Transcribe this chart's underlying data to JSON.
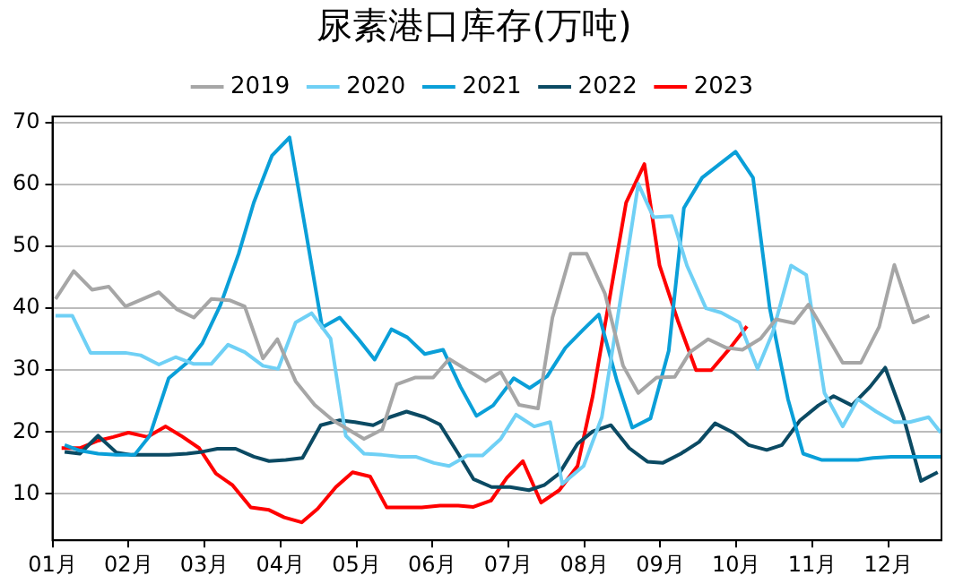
{
  "chart_data": {
    "type": "line",
    "title": "尿素港口库存(万吨)",
    "legend": "top",
    "grid": "y",
    "line_style": "solid",
    "marker": "none",
    "xlim": [
      1,
      12.7
    ],
    "xticks": [
      {
        "value": 1,
        "label": "01月"
      },
      {
        "value": 2,
        "label": "02月"
      },
      {
        "value": 3,
        "label": "03月"
      },
      {
        "value": 4,
        "label": "04月"
      },
      {
        "value": 5,
        "label": "05月"
      },
      {
        "value": 6,
        "label": "06月"
      },
      {
        "value": 7,
        "label": "07月"
      },
      {
        "value": 8,
        "label": "08月"
      },
      {
        "value": 9,
        "label": "09月"
      },
      {
        "value": 10,
        "label": "10月"
      },
      {
        "value": 11,
        "label": "11月"
      },
      {
        "value": 12,
        "label": "12月"
      }
    ],
    "ylim": [
      2.5,
      71
    ],
    "yticks": [
      10,
      20,
      30,
      40,
      50,
      60,
      70
    ],
    "series": [
      {
        "name": "2019",
        "color": "#a6a6a6",
        "x": [
          1.04,
          1.28,
          1.52,
          1.74,
          1.96,
          2.4,
          2.64,
          2.86,
          3.09,
          3.33,
          3.53,
          3.77,
          3.96,
          4.2,
          4.45,
          4.69,
          5.1,
          5.34,
          5.53,
          5.77,
          6.01,
          6.22,
          6.46,
          6.7,
          6.9,
          7.14,
          7.39,
          7.58,
          7.82,
          8.03,
          8.27,
          8.51,
          8.71,
          8.95,
          9.19,
          9.39,
          9.63,
          9.87,
          10.08,
          10.32,
          10.52,
          10.76,
          10.95,
          11.19,
          11.4,
          11.64,
          11.88,
          12.08,
          12.33,
          12.54
        ],
        "values": [
          41.5,
          46,
          43,
          43.5,
          40.3,
          42.6,
          39.8,
          38.5,
          41.5,
          41.3,
          40.3,
          31.9,
          35,
          28.2,
          24.4,
          21.9,
          18.9,
          20.4,
          27.7,
          28.8,
          28.8,
          31.8,
          30,
          28.2,
          29.7,
          24.4,
          23.8,
          38.5,
          48.8,
          48.8,
          42.4,
          30.7,
          26.3,
          28.8,
          28.9,
          32.9,
          35,
          33.6,
          33.3,
          35.1,
          38.2,
          37.6,
          40.6,
          35.6,
          31.2,
          31.2,
          37,
          47,
          37.7,
          38.8
        ]
      },
      {
        "name": "2020",
        "color": "#6fd0f5",
        "x": [
          1.04,
          1.26,
          1.5,
          1.74,
          1.96,
          2.16,
          2.4,
          2.62,
          2.86,
          3.09,
          3.31,
          3.53,
          3.77,
          3.97,
          4.2,
          4.41,
          4.66,
          4.86,
          5.1,
          5.34,
          5.58,
          5.78,
          6.02,
          6.22,
          6.46,
          6.66,
          6.9,
          7.1,
          7.34,
          7.55,
          7.71,
          7.99,
          8.23,
          8.47,
          8.71,
          8.91,
          9.15,
          9.35,
          9.6,
          9.8,
          10.04,
          10.28,
          10.48,
          10.72,
          10.92,
          11.16,
          11.4,
          11.6,
          11.84,
          12.08,
          12.28,
          12.53,
          12.69
        ],
        "values": [
          38.8,
          38.8,
          32.8,
          32.8,
          32.8,
          32.4,
          30.9,
          32.1,
          31,
          31,
          34.1,
          32.9,
          30.7,
          30.2,
          37.7,
          39.2,
          35.1,
          19.4,
          16.5,
          16.3,
          16,
          16,
          15,
          14.5,
          16.2,
          16.2,
          18.9,
          22.8,
          20.9,
          21.6,
          11.6,
          14.5,
          22.4,
          41,
          60.1,
          54.7,
          54.9,
          46.9,
          40,
          39.3,
          37.7,
          30.2,
          36.1,
          46.9,
          45.4,
          26.3,
          20.9,
          25.3,
          23.3,
          21.6,
          21.6,
          22.4,
          19.9
        ]
      },
      {
        "name": "2021",
        "color": "#0a9fd8",
        "x": [
          1.16,
          1.36,
          1.6,
          1.84,
          2.08,
          2.28,
          2.53,
          2.77,
          2.97,
          3.21,
          3.45,
          3.65,
          3.89,
          4.12,
          4.33,
          4.55,
          4.78,
          5.02,
          5.24,
          5.46,
          5.67,
          5.9,
          6.14,
          6.37,
          6.58,
          6.8,
          7.07,
          7.28,
          7.51,
          7.75,
          7.99,
          8.19,
          8.43,
          8.63,
          8.87,
          9.11,
          9.31,
          9.55,
          9.8,
          9.99,
          10.22,
          10.44,
          10.68,
          10.88,
          11.12,
          11.36,
          11.6,
          11.8,
          12.04,
          12.33,
          12.69
        ],
        "values": [
          17.9,
          17,
          16.5,
          16.3,
          16.3,
          19.4,
          28.7,
          31.2,
          34.3,
          40.5,
          48.8,
          57.1,
          64.7,
          67.6,
          52.7,
          36.9,
          38.5,
          35.1,
          31.7,
          36.6,
          35.3,
          32.6,
          33.3,
          27.3,
          22.6,
          24.3,
          28.7,
          27.1,
          29,
          33.6,
          36.6,
          39,
          28.2,
          20.7,
          22.2,
          33.1,
          56.2,
          61.1,
          63.5,
          65.3,
          61.1,
          40,
          25.3,
          16.5,
          15.5,
          15.5,
          15.5,
          15.8,
          16,
          16,
          16
        ]
      },
      {
        "name": "2022",
        "color": "#0b4a63",
        "x": [
          1.16,
          1.36,
          1.6,
          1.84,
          2.04,
          2.28,
          2.53,
          2.77,
          2.97,
          3.17,
          3.41,
          3.65,
          3.85,
          4.07,
          4.29,
          4.53,
          4.78,
          4.98,
          5.22,
          5.44,
          5.66,
          5.9,
          6.1,
          6.34,
          6.54,
          6.78,
          7.02,
          7.27,
          7.47,
          7.67,
          7.91,
          8.11,
          8.35,
          8.59,
          8.83,
          9.03,
          9.27,
          9.51,
          9.72,
          9.96,
          10.16,
          10.4,
          10.6,
          10.84,
          11.08,
          11.28,
          11.52,
          11.76,
          11.96,
          12.2,
          12.43,
          12.65
        ],
        "values": [
          16.8,
          16.5,
          19.4,
          16.7,
          16.3,
          16.3,
          16.3,
          16.5,
          16.8,
          17.3,
          17.3,
          16,
          15.3,
          15.5,
          15.8,
          21.1,
          21.9,
          21.6,
          21.1,
          22.4,
          23.3,
          22.4,
          21.2,
          16.5,
          12.4,
          11.1,
          11.1,
          10.6,
          11.4,
          13.3,
          18.1,
          20.1,
          21.1,
          17.4,
          15.2,
          15,
          16.5,
          18.4,
          21.4,
          19.9,
          17.9,
          17.1,
          17.9,
          21.9,
          24.3,
          25.8,
          24.3,
          27.3,
          30.4,
          22.4,
          12.1,
          13.5
        ]
      },
      {
        "name": "2023",
        "color": "#ff0000",
        "x": [
          1.12,
          1.36,
          1.6,
          1.8,
          2.0,
          2.25,
          2.49,
          2.69,
          2.93,
          3.15,
          3.37,
          3.61,
          3.85,
          4.05,
          4.28,
          4.49,
          4.73,
          4.95,
          5.18,
          5.4,
          5.64,
          5.86,
          6.1,
          6.34,
          6.54,
          6.77,
          6.98,
          7.19,
          7.43,
          7.67,
          7.91,
          8.11,
          8.35,
          8.55,
          8.79,
          8.99,
          9.23,
          9.47,
          9.67,
          9.92,
          10.14
        ],
        "values": [
          17.4,
          17.4,
          18.6,
          19.2,
          19.9,
          19.2,
          20.9,
          19.4,
          17.4,
          13.3,
          11.4,
          7.8,
          7.4,
          6.2,
          5.4,
          7.6,
          11.1,
          13.5,
          12.8,
          7.8,
          7.8,
          7.8,
          8.1,
          8.1,
          7.9,
          8.9,
          12.6,
          15.3,
          8.6,
          10.6,
          14.5,
          25.8,
          42.9,
          57.1,
          63.3,
          46.9,
          38,
          30,
          30,
          33.6,
          37.1
        ]
      }
    ]
  }
}
